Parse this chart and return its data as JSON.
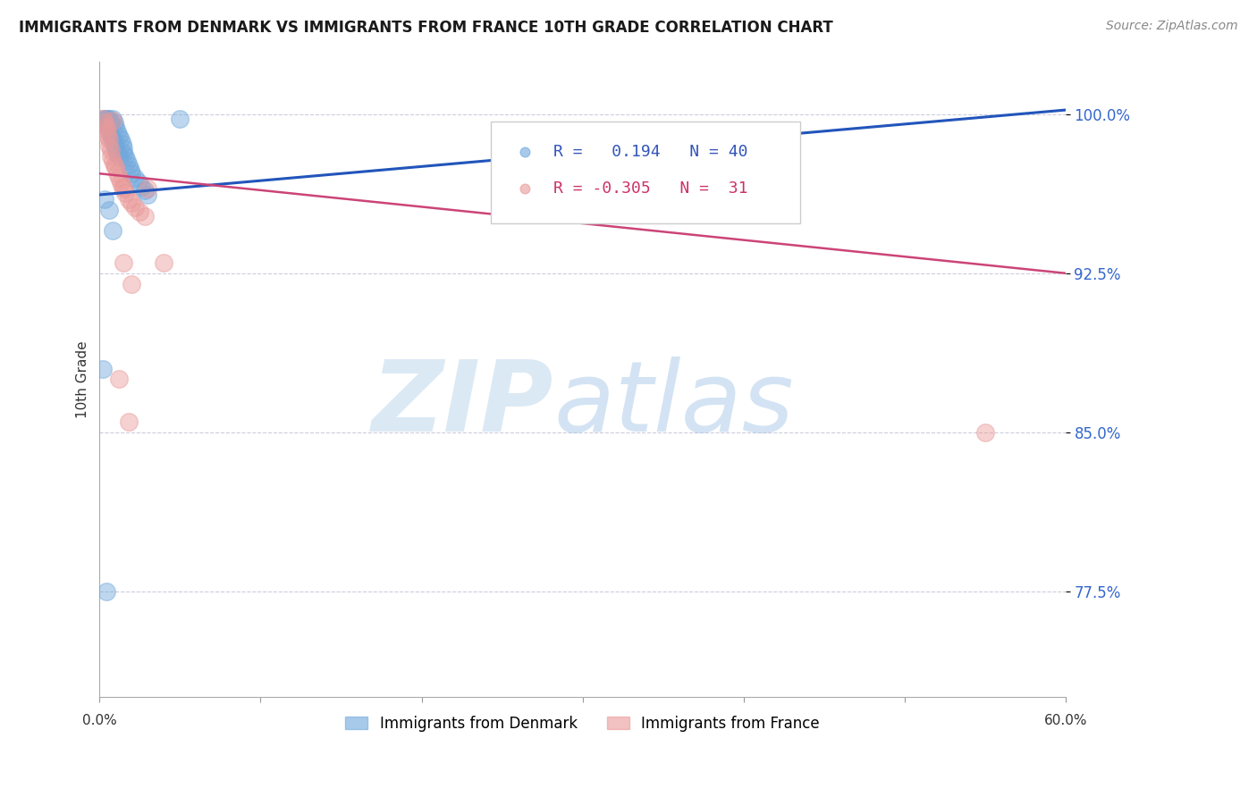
{
  "title": "IMMIGRANTS FROM DENMARK VS IMMIGRANTS FROM FRANCE 10TH GRADE CORRELATION CHART",
  "source": "Source: ZipAtlas.com",
  "ylabel": "10th Grade",
  "ytick_labels": [
    "77.5%",
    "85.0%",
    "92.5%",
    "100.0%"
  ],
  "ytick_values": [
    0.775,
    0.85,
    0.925,
    1.0
  ],
  "xlim": [
    0.0,
    0.6
  ],
  "ylim": [
    0.725,
    1.025
  ],
  "legend_r_denmark": "0.194",
  "legend_n_denmark": "40",
  "legend_r_france": "-0.305",
  "legend_n_france": "31",
  "denmark_color": "#6fa8dc",
  "france_color": "#ea9999",
  "denmark_line_color": "#2255bb",
  "france_line_color": "#cc4477",
  "dk_line_x": [
    0.0,
    0.6
  ],
  "dk_line_y": [
    0.962,
    1.002
  ],
  "fr_line_x": [
    0.0,
    0.6
  ],
  "fr_line_y": [
    0.972,
    0.925
  ],
  "dk_x": [
    0.002,
    0.003,
    0.004,
    0.004,
    0.005,
    0.005,
    0.006,
    0.006,
    0.007,
    0.007,
    0.008,
    0.008,
    0.009,
    0.009,
    0.01,
    0.01,
    0.011,
    0.011,
    0.012,
    0.012,
    0.013,
    0.014,
    0.015,
    0.015,
    0.016,
    0.017,
    0.018,
    0.019,
    0.02,
    0.022,
    0.024,
    0.026,
    0.028,
    0.03,
    0.003,
    0.006,
    0.008,
    0.05,
    0.002,
    0.004
  ],
  "dk_y": [
    0.998,
    0.998,
    0.998,
    0.996,
    0.998,
    0.994,
    0.998,
    0.992,
    0.996,
    0.99,
    0.998,
    0.988,
    0.996,
    0.986,
    0.994,
    0.984,
    0.992,
    0.982,
    0.99,
    0.98,
    0.988,
    0.986,
    0.984,
    0.982,
    0.98,
    0.978,
    0.976,
    0.974,
    0.972,
    0.97,
    0.968,
    0.966,
    0.964,
    0.962,
    0.96,
    0.955,
    0.945,
    0.998,
    0.88,
    0.775
  ],
  "fr_x": [
    0.002,
    0.003,
    0.004,
    0.005,
    0.005,
    0.006,
    0.006,
    0.007,
    0.007,
    0.008,
    0.008,
    0.009,
    0.01,
    0.011,
    0.012,
    0.013,
    0.014,
    0.015,
    0.016,
    0.018,
    0.02,
    0.022,
    0.025,
    0.028,
    0.015,
    0.02,
    0.03,
    0.012,
    0.018,
    0.04,
    0.55
  ],
  "fr_y": [
    0.998,
    0.996,
    0.994,
    0.992,
    0.99,
    0.988,
    0.985,
    0.983,
    0.98,
    0.997,
    0.978,
    0.976,
    0.975,
    0.972,
    0.97,
    0.968,
    0.966,
    0.965,
    0.963,
    0.96,
    0.958,
    0.956,
    0.954,
    0.952,
    0.93,
    0.92,
    0.965,
    0.875,
    0.855,
    0.93,
    0.85
  ]
}
